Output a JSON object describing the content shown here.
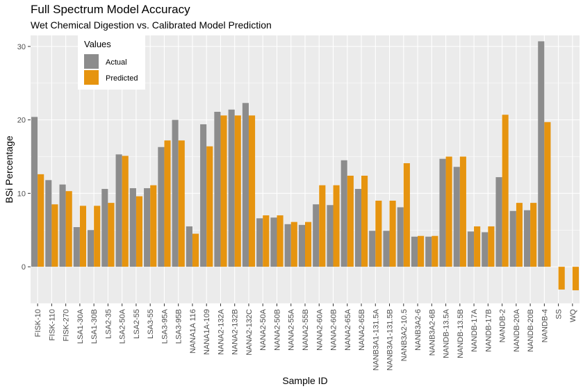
{
  "chart_data": {
    "type": "bar",
    "title": "Full Spectrum Model Accuracy",
    "subtitle": "Wet Chemical Digestion vs. Calibrated Model Prediction",
    "xlabel": "Sample ID",
    "ylabel": "BSi Percentage",
    "ylim": [
      -5,
      31.5
    ],
    "yticks": [
      0,
      10,
      20,
      30
    ],
    "grid": true,
    "legend": {
      "title": "Values",
      "placement": "top-left"
    },
    "categories": [
      "FISK-10",
      "FISK-110",
      "FISK-270",
      "LSA1-30A",
      "LSA1-30B",
      "LSA2-35",
      "LSA2-50A",
      "LSA2-55",
      "LSA3-55",
      "LSA3-95A",
      "LSA3-95B",
      "NANA1A 116",
      "NANA1A-109",
      "NANA2-132A",
      "NANA2-132B",
      "NANA2-132C",
      "NANA2-50A",
      "NANA2-50B",
      "NANA2-55A",
      "NANA2-55B",
      "NANA2-60A",
      "NANA2-60B",
      "NANA2-65A",
      "NANA2-65B",
      "NANB3A1-131.5A",
      "NANB3A1-131.5B",
      "NANB3A2-10.5",
      "NANB3A2-6",
      "NANB3A2-6B",
      "NANDB-13.5A",
      "NANDB-13.5B",
      "NANDB-17A",
      "NANDB-17B",
      "NANDB-2",
      "NANDB-20A",
      "NANDB-20B",
      "NANDB-4",
      "SS",
      "WQ"
    ],
    "series": [
      {
        "name": "Actual",
        "color": "#8c8c8c",
        "values": [
          20.4,
          11.8,
          11.2,
          5.4,
          5.0,
          10.6,
          15.3,
          10.7,
          10.7,
          16.3,
          20.0,
          5.5,
          19.4,
          21.1,
          21.4,
          22.3,
          6.6,
          6.7,
          5.8,
          5.7,
          8.5,
          8.4,
          14.5,
          10.6,
          4.9,
          4.9,
          8.1,
          4.1,
          4.1,
          14.7,
          13.6,
          4.8,
          4.7,
          12.2,
          7.6,
          7.7,
          30.7,
          null,
          null
        ]
      },
      {
        "name": "Predicted",
        "color": "#e6940f",
        "values": [
          12.6,
          8.5,
          10.3,
          8.3,
          8.3,
          8.7,
          15.1,
          9.6,
          11.1,
          17.2,
          17.2,
          4.5,
          16.4,
          20.6,
          20.6,
          20.6,
          7.0,
          7.0,
          6.1,
          6.1,
          11.1,
          11.1,
          12.4,
          12.4,
          9.0,
          9.0,
          14.1,
          4.2,
          4.2,
          15.0,
          15.0,
          5.5,
          5.5,
          20.7,
          8.7,
          8.7,
          19.7,
          -3.1,
          -3.2
        ]
      }
    ]
  }
}
